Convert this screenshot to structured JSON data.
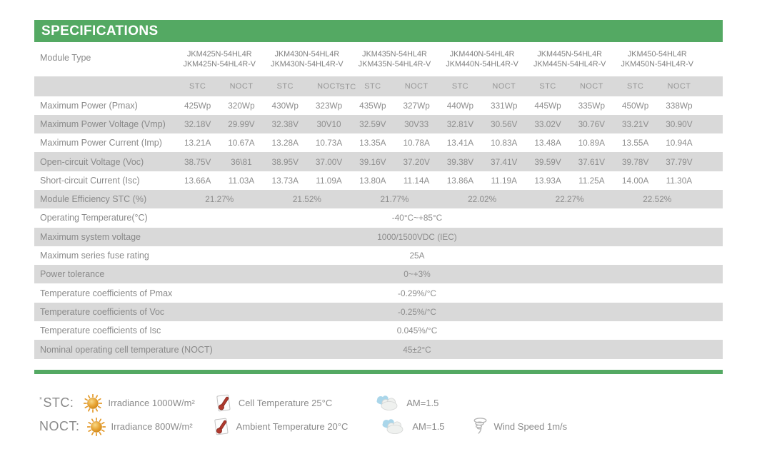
{
  "title": "SPECIFICATIONS",
  "colors": {
    "accent_green": "#54a963",
    "row_gray": "#d9d9d9",
    "text_gray": "#8a8a8a",
    "sun_orange": "#e39b2d",
    "thermometer_red": "#b03a2e",
    "cloud_blue": "#aad6ea"
  },
  "table": {
    "module_type_label": "Module Type",
    "modules": [
      {
        "line1": "JKM425N-54HL4R",
        "line2": "JKM425N-54HL4R-V"
      },
      {
        "line1": "JKM430N-54HL4R",
        "line2": "JKM430N-54HL4R-V"
      },
      {
        "line1": "JKM435N-54HL4R",
        "line2": "JKM435N-54HL4R-V"
      },
      {
        "line1": "JKM440N-54HL4R",
        "line2": "JKM440N-54HL4R-V"
      },
      {
        "line1": "JKM445N-54HL4R",
        "line2": "JKM445N-54HL4R-V"
      },
      {
        "line1": "JKM450-54HL4R",
        "line2": "JKM450N-54HL4R-V"
      }
    ],
    "subheader": {
      "stc": "STC",
      "noct": "NOCT"
    },
    "subheader_glitch": "STC",
    "rows": [
      {
        "label": "Maximum Power (Pmax)",
        "type": "pair",
        "values": [
          [
            "425Wp",
            "320Wp"
          ],
          [
            "430Wp",
            "323Wp"
          ],
          [
            "435Wp",
            "327Wp"
          ],
          [
            "440Wp",
            "331Wp"
          ],
          [
            "445Wp",
            "335Wp"
          ],
          [
            "450Wp",
            "338Wp"
          ]
        ]
      },
      {
        "label": "Maximum Power Voltage (Vmp)",
        "type": "pair",
        "values": [
          [
            "32.18V",
            "29.99V"
          ],
          [
            "32.38V",
            "30V10"
          ],
          [
            "32.59V",
            "30V33"
          ],
          [
            "32.81V",
            "30.56V"
          ],
          [
            "33.02V",
            "30.76V"
          ],
          [
            "33.21V",
            "30.90V"
          ]
        ]
      },
      {
        "label": "Maximum Power Current (Imp)",
        "type": "pair",
        "values": [
          [
            "13.21A",
            "10.67A"
          ],
          [
            "13.28A",
            "10.73A"
          ],
          [
            "13.35A",
            "10.78A"
          ],
          [
            "13.41A",
            "10.83A"
          ],
          [
            "13.48A",
            "10.89A"
          ],
          [
            "13.55A",
            "10.94A"
          ]
        ]
      },
      {
        "label": "Open-circuit Voltage (Voc)",
        "type": "pair",
        "values": [
          [
            "38.75V",
            "36\\81"
          ],
          [
            "38.95V",
            "37.00V"
          ],
          [
            "39.16V",
            "37.20V"
          ],
          [
            "39.38V",
            "37.41V"
          ],
          [
            "39.59V",
            "37.61V"
          ],
          [
            "39.78V",
            "37.79V"
          ]
        ]
      },
      {
        "label": "Short-circuit Current (Isc)",
        "type": "pair",
        "values": [
          [
            "13.66A",
            "11.03A"
          ],
          [
            "13.73A",
            "11.09A"
          ],
          [
            "13.80A",
            "11.14A"
          ],
          [
            "13.86A",
            "11.19A"
          ],
          [
            "13.93A",
            "11.25A"
          ],
          [
            "14.00A",
            "11.30A"
          ]
        ]
      },
      {
        "label": "Module Efficiency STC (%)",
        "type": "group",
        "values": [
          "21.27%",
          "21.52%",
          "21.77%",
          "22.02%",
          "22.27%",
          "22.52%"
        ]
      },
      {
        "label": "Operating Temperature(°C)",
        "type": "single",
        "value": "-40°C~+85°C"
      },
      {
        "label": "Maximum system voltage",
        "type": "single",
        "value": "1000/1500VDC (IEC)"
      },
      {
        "label": "Maximum series fuse rating",
        "type": "single",
        "value": "25A"
      },
      {
        "label": "Power tolerance",
        "type": "single",
        "value": "0~+3%"
      },
      {
        "label": "Temperature coefficients of Pmax",
        "type": "single",
        "value": "-0.29%/°C"
      },
      {
        "label": "Temperature coefficients of Voc",
        "type": "single",
        "value": "-0.25%/°C"
      },
      {
        "label": "Temperature coefficients of Isc",
        "type": "single",
        "value": "0.045%/°C"
      },
      {
        "label": "Nominal operating cell temperature  (NOCT)",
        "type": "single",
        "value": "45±2°C"
      }
    ]
  },
  "legend": {
    "stc": {
      "asterisk": "*",
      "label": "STC:",
      "items": [
        {
          "icon": "sun-icon",
          "text": "Irradiance 1000W/m²"
        },
        {
          "icon": "thermometer-icon",
          "text": "Cell Temperature 25°C"
        },
        {
          "icon": "clouds-icon",
          "text": "AM=1.5"
        }
      ]
    },
    "noct": {
      "label": "NOCT:",
      "items": [
        {
          "icon": "sun-icon",
          "text": "Irradiance 800W/m²"
        },
        {
          "icon": "thermometer-icon",
          "text": "Ambient Temperature 20°C"
        },
        {
          "icon": "clouds-icon",
          "text": "AM=1.5"
        },
        {
          "icon": "tornado-icon",
          "text": "Wind Speed 1m/s"
        }
      ]
    }
  }
}
